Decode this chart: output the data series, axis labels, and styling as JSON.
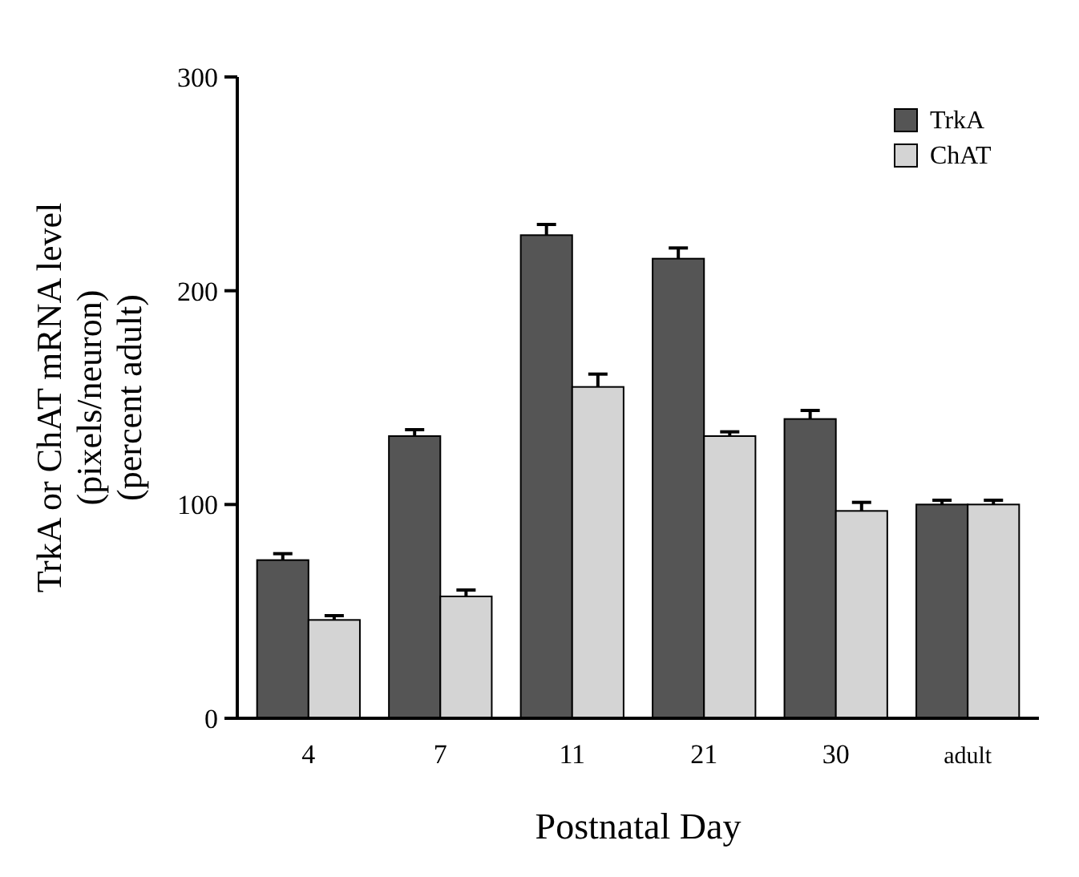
{
  "chart_data": {
    "type": "bar",
    "xlabel": "Postnatal Day",
    "ylabel": "TrkA or ChAT mRNA level\n(pixels/neuron)\n(percent adult)",
    "categories": [
      "4",
      "7",
      "11",
      "21",
      "30",
      "adult"
    ],
    "series": [
      {
        "name": "TrkA",
        "color": "#555555",
        "values": [
          74,
          132,
          226,
          215,
          140,
          100
        ],
        "errors": [
          [
            74,
            77
          ],
          [
            132,
            135
          ],
          [
            226,
            231
          ],
          [
            215,
            220
          ],
          [
            140,
            144
          ],
          [
            100,
            102
          ]
        ]
      },
      {
        "name": "ChAT",
        "color": "#d4d4d4",
        "values": [
          46,
          57,
          155,
          132,
          97,
          100
        ],
        "errors": [
          [
            46,
            48
          ],
          [
            57,
            60
          ],
          [
            155,
            161
          ],
          [
            132,
            134
          ],
          [
            97,
            101
          ],
          [
            100,
            102
          ]
        ]
      }
    ],
    "ylim": [
      0,
      300
    ],
    "yticks": [
      0,
      100,
      200,
      300
    ],
    "grid": false,
    "legend": "top right"
  }
}
